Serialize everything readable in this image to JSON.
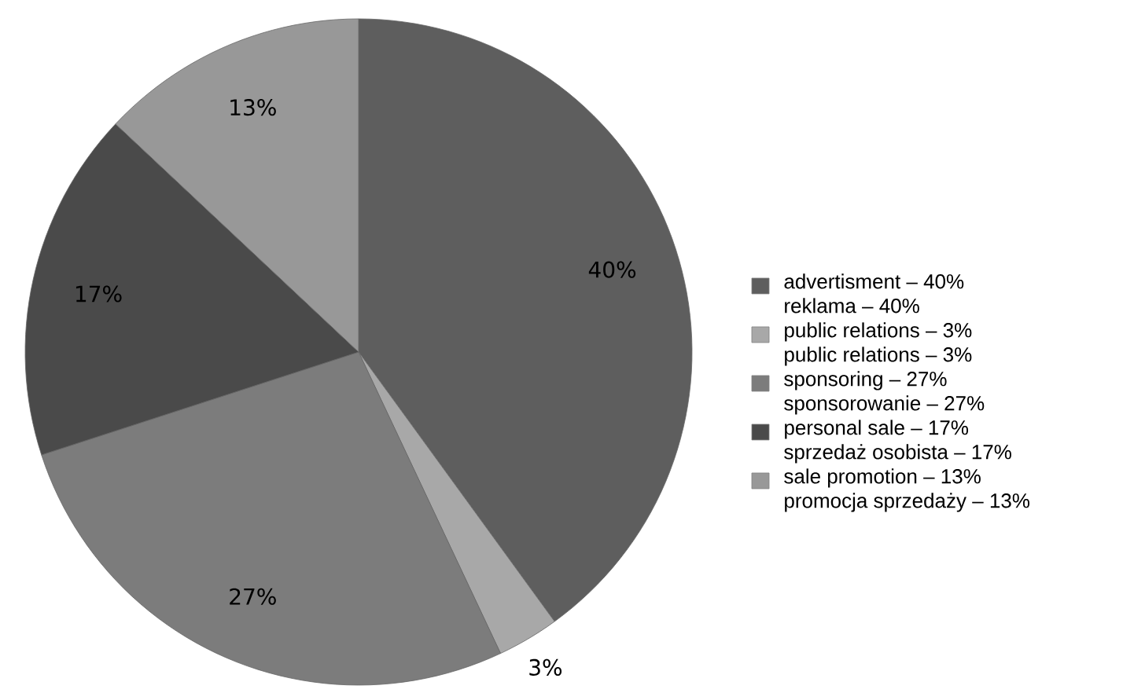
{
  "chart_data": {
    "type": "pie",
    "categories": [
      "advertisment – 40%\nreklama – 40%",
      "public relations – 3%\npublic relations – 3%",
      "sponsoring – 27%\nsponsorowanie – 27%",
      "personal sale – 17%\nsprzedaż osobista – 17%",
      "sale promotion – 13%\npromocja sprzedaży – 13%"
    ],
    "values": [
      40,
      3,
      27,
      17,
      13
    ],
    "value_labels": [
      "40%",
      "3%",
      "27%",
      "17%",
      "13%"
    ],
    "colors": [
      "#5e5e5e",
      "#a8a8a8",
      "#7c7c7c",
      "#4a4a4a",
      "#989898"
    ],
    "legend": "right"
  }
}
